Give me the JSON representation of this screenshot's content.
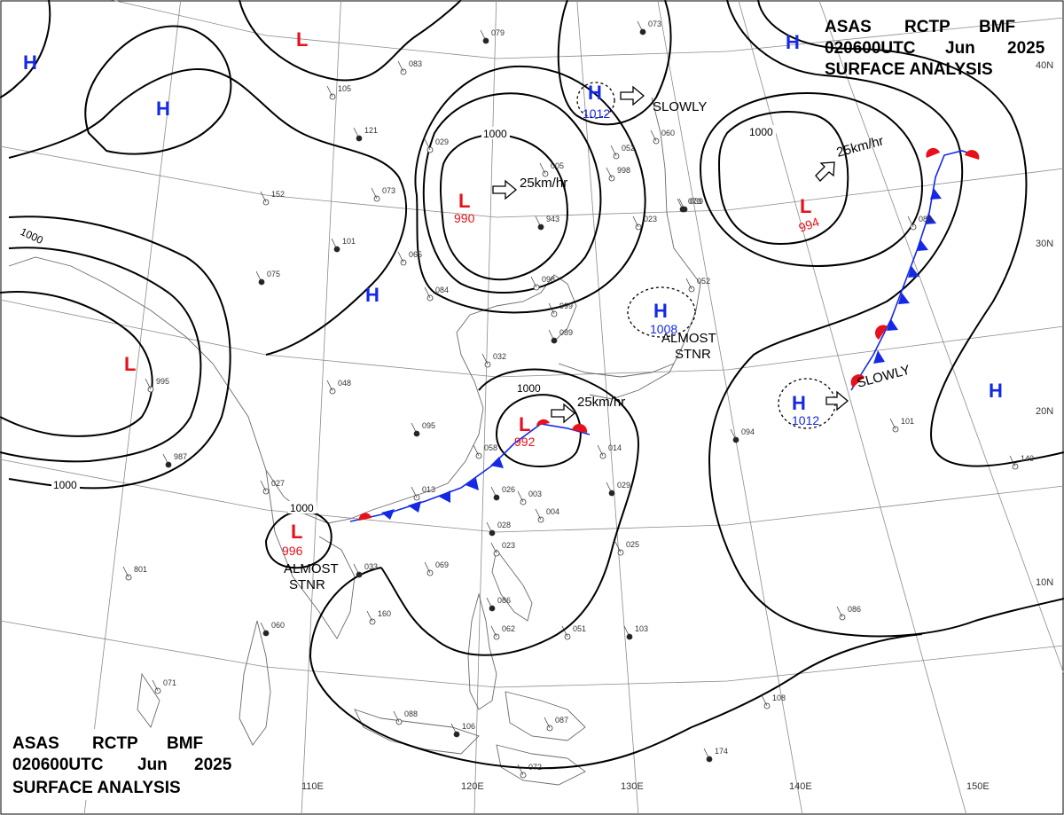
{
  "header": {
    "line1": [
      "ASAS",
      "RCTP",
      "BMF"
    ],
    "line2": [
      "020600UTC",
      "Jun",
      "2025"
    ],
    "line3": "SURFACE ANALYSIS"
  },
  "colors": {
    "low": "#e8101a",
    "high": "#1428e6",
    "isobar": "#000000",
    "grid": "#7a7a7a",
    "coast": "#6a6a6a"
  },
  "lat_labels": [
    "40N",
    "30N",
    "20N",
    "10N"
  ],
  "lon_labels": [
    "110E",
    "120E",
    "130E",
    "140E",
    "150E"
  ],
  "isobar_labels": [
    "1000",
    "1000",
    "1000",
    "1000",
    "1000",
    "1000"
  ],
  "highs": [
    {
      "symbol": "H",
      "pressure": ""
    },
    {
      "symbol": "H",
      "pressure": ""
    },
    {
      "symbol": "H",
      "pressure": "1012"
    },
    {
      "symbol": "H",
      "pressure": ""
    },
    {
      "symbol": "H",
      "pressure": "1008"
    },
    {
      "symbol": "H",
      "pressure": "1012"
    },
    {
      "symbol": "H",
      "pressure": ""
    },
    {
      "symbol": "H",
      "pressure": ""
    }
  ],
  "lows": [
    {
      "symbol": "L",
      "pressure": ""
    },
    {
      "symbol": "L",
      "pressure": "990"
    },
    {
      "symbol": "L",
      "pressure": "994"
    },
    {
      "symbol": "L",
      "pressure": ""
    },
    {
      "symbol": "L",
      "pressure": "992"
    },
    {
      "symbol": "L",
      "pressure": "996"
    }
  ],
  "motions": [
    "25km/hr",
    "25km/hr",
    "25km/hr",
    "SLOWLY",
    "SLOWLY"
  ],
  "stationary_notes": [
    [
      "ALMOST",
      "STNR"
    ],
    [
      "ALMOST",
      "STNR"
    ]
  ],
  "station_samples": [
    "079",
    "083",
    "105",
    "121",
    "029",
    "073",
    "101",
    "065",
    "084",
    "075",
    "152",
    "005",
    "943",
    "998",
    "023",
    "039",
    "052",
    "060",
    "073",
    "098",
    "999",
    "089",
    "032",
    "048",
    "095",
    "058",
    "014",
    "026",
    "013",
    "003",
    "028",
    "023",
    "027",
    "987",
    "995",
    "801",
    "060",
    "071",
    "088",
    "106",
    "087",
    "072",
    "086",
    "062",
    "051",
    "103",
    "108",
    "086",
    "094",
    "101",
    "140",
    "174",
    "088",
    "160",
    "033",
    "004",
    "025",
    "073",
    "052",
    "069",
    "029",
    "051"
  ]
}
